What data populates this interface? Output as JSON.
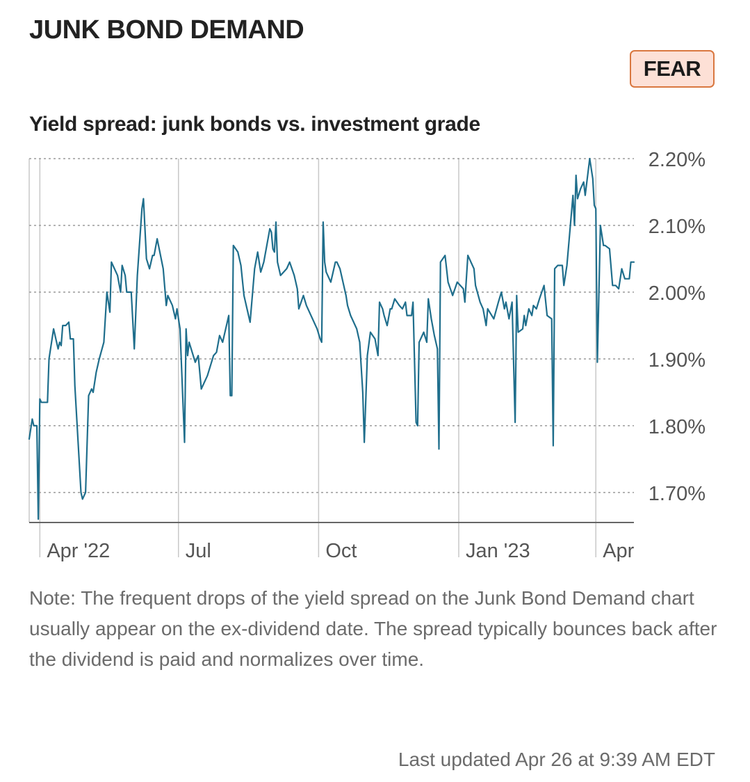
{
  "header": {
    "title": "JUNK BOND DEMAND",
    "badge_label": "FEAR"
  },
  "subtitle": "Yield spread: junk bonds vs. investment grade",
  "note": "Note: The frequent drops of the yield spread on the Junk Bond Demand chart usually appear on the ex-dividend date. The spread typically bounces back after the dividend is paid and normalizes over time.",
  "last_updated": "Last updated Apr 26 at 9:39 AM EDT",
  "colors": {
    "line": "#1f6e8c",
    "badge_bg": "#fde0d6",
    "badge_border": "#d9773f",
    "grid": "#9a9a9a",
    "axis": "#666666"
  },
  "chart_data": {
    "type": "line",
    "title": "Yield spread: junk bonds vs. investment grade",
    "x_axis": {
      "type": "date",
      "range": [
        "2022-03-25",
        "2023-04-26"
      ],
      "ticks": [
        {
          "date": "2022-04-01",
          "label": "Apr '22"
        },
        {
          "date": "2022-07-01",
          "label": "Jul"
        },
        {
          "date": "2022-10-01",
          "label": "Oct"
        },
        {
          "date": "2023-01-01",
          "label": "Jan '23"
        },
        {
          "date": "2023-04-01",
          "label": "Apr"
        }
      ]
    },
    "y_axis": {
      "unit": "%",
      "range": [
        1.655,
        2.2
      ],
      "position": "right",
      "ticks": [
        {
          "value": 1.7,
          "label": "1.70%"
        },
        {
          "value": 1.8,
          "label": "1.80%"
        },
        {
          "value": 1.9,
          "label": "1.90%"
        },
        {
          "value": 2.0,
          "label": "2.00%"
        },
        {
          "value": 2.1,
          "label": "2.10%"
        },
        {
          "value": 2.2,
          "label": "2.20%"
        }
      ]
    },
    "grid": "horizontal dotted, vertical at month ticks",
    "series": [
      {
        "values": [
          [
            "2022-03-25",
            1.78
          ],
          [
            "2022-03-27",
            1.81
          ],
          [
            "2022-03-28",
            1.8
          ],
          [
            "2022-03-30",
            1.8
          ],
          [
            "2022-03-31",
            1.66
          ],
          [
            "2022-04-01",
            1.84
          ],
          [
            "2022-04-02",
            1.835
          ],
          [
            "2022-04-04",
            1.835
          ],
          [
            "2022-04-06",
            1.835
          ],
          [
            "2022-04-07",
            1.9
          ],
          [
            "2022-04-10",
            1.945
          ],
          [
            "2022-04-13",
            1.915
          ],
          [
            "2022-04-14",
            1.925
          ],
          [
            "2022-04-15",
            1.92
          ],
          [
            "2022-04-16",
            1.95
          ],
          [
            "2022-04-18",
            1.95
          ],
          [
            "2022-04-20",
            1.955
          ],
          [
            "2022-04-21",
            1.93
          ],
          [
            "2022-04-23",
            1.93
          ],
          [
            "2022-04-24",
            1.86
          ],
          [
            "2022-04-28",
            1.7
          ],
          [
            "2022-04-29",
            1.69
          ],
          [
            "2022-05-01",
            1.7
          ],
          [
            "2022-05-03",
            1.845
          ],
          [
            "2022-05-05",
            1.855
          ],
          [
            "2022-05-06",
            1.85
          ],
          [
            "2022-05-08",
            1.88
          ],
          [
            "2022-05-10",
            1.9
          ],
          [
            "2022-05-13",
            1.925
          ],
          [
            "2022-05-15",
            2.0
          ],
          [
            "2022-05-17",
            1.97
          ],
          [
            "2022-05-18",
            2.045
          ],
          [
            "2022-05-22",
            2.025
          ],
          [
            "2022-05-24",
            2.0
          ],
          [
            "2022-05-25",
            2.04
          ],
          [
            "2022-05-27",
            2.025
          ],
          [
            "2022-05-28",
            2.0
          ],
          [
            "2022-05-31",
            2.0
          ],
          [
            "2022-06-02",
            1.915
          ],
          [
            "2022-06-04",
            2.025
          ],
          [
            "2022-06-07",
            2.125
          ],
          [
            "2022-06-08",
            2.14
          ],
          [
            "2022-06-10",
            2.05
          ],
          [
            "2022-06-12",
            2.035
          ],
          [
            "2022-06-14",
            2.055
          ],
          [
            "2022-06-15",
            2.055
          ],
          [
            "2022-06-17",
            2.08
          ],
          [
            "2022-06-21",
            2.035
          ],
          [
            "2022-06-23",
            1.98
          ],
          [
            "2022-06-24",
            1.995
          ],
          [
            "2022-06-27",
            1.98
          ],
          [
            "2022-06-29",
            1.96
          ],
          [
            "2022-06-30",
            1.975
          ],
          [
            "2022-07-02",
            1.945
          ],
          [
            "2022-07-05",
            1.775
          ],
          [
            "2022-07-06",
            1.945
          ],
          [
            "2022-07-07",
            1.905
          ],
          [
            "2022-07-08",
            1.925
          ],
          [
            "2022-07-12",
            1.895
          ],
          [
            "2022-07-14",
            1.905
          ],
          [
            "2022-07-16",
            1.855
          ],
          [
            "2022-07-20",
            1.875
          ],
          [
            "2022-07-24",
            1.905
          ],
          [
            "2022-07-26",
            1.91
          ],
          [
            "2022-07-28",
            1.935
          ],
          [
            "2022-07-30",
            1.925
          ],
          [
            "2022-08-03",
            1.965
          ],
          [
            "2022-08-04",
            1.845
          ],
          [
            "2022-08-05",
            1.845
          ],
          [
            "2022-08-06",
            2.07
          ],
          [
            "2022-08-09",
            2.06
          ],
          [
            "2022-08-11",
            2.04
          ],
          [
            "2022-08-13",
            1.995
          ],
          [
            "2022-08-17",
            1.955
          ],
          [
            "2022-08-20",
            2.035
          ],
          [
            "2022-08-22",
            2.06
          ],
          [
            "2022-08-24",
            2.03
          ],
          [
            "2022-08-26",
            2.045
          ],
          [
            "2022-08-30",
            2.095
          ],
          [
            "2022-08-31",
            2.09
          ],
          [
            "2022-09-01",
            2.065
          ],
          [
            "2022-09-02",
            2.06
          ],
          [
            "2022-09-03",
            2.105
          ],
          [
            "2022-09-04",
            2.045
          ],
          [
            "2022-09-06",
            2.025
          ],
          [
            "2022-09-08",
            2.03
          ],
          [
            "2022-09-10",
            2.035
          ],
          [
            "2022-09-12",
            2.045
          ],
          [
            "2022-09-15",
            2.025
          ],
          [
            "2022-09-17",
            2.005
          ],
          [
            "2022-09-18",
            1.975
          ],
          [
            "2022-09-21",
            1.995
          ],
          [
            "2022-09-23",
            1.98
          ],
          [
            "2022-09-30",
            1.945
          ],
          [
            "2022-10-02",
            1.93
          ],
          [
            "2022-10-03",
            1.925
          ],
          [
            "2022-10-04",
            2.105
          ],
          [
            "2022-10-05",
            2.045
          ],
          [
            "2022-10-06",
            2.03
          ],
          [
            "2022-10-09",
            2.015
          ],
          [
            "2022-10-12",
            2.045
          ],
          [
            "2022-10-13",
            2.045
          ],
          [
            "2022-10-15",
            2.035
          ],
          [
            "2022-10-19",
            1.995
          ],
          [
            "2022-10-20",
            1.98
          ],
          [
            "2022-10-22",
            1.965
          ],
          [
            "2022-10-24",
            1.955
          ],
          [
            "2022-10-26",
            1.945
          ],
          [
            "2022-10-28",
            1.925
          ],
          [
            "2022-10-30",
            1.85
          ],
          [
            "2022-10-31",
            1.775
          ],
          [
            "2022-11-02",
            1.905
          ],
          [
            "2022-11-04",
            1.94
          ],
          [
            "2022-11-07",
            1.93
          ],
          [
            "2022-11-09",
            1.905
          ],
          [
            "2022-11-10",
            1.985
          ],
          [
            "2022-11-12",
            1.975
          ],
          [
            "2022-11-13",
            1.965
          ],
          [
            "2022-11-15",
            1.95
          ],
          [
            "2022-11-17",
            1.975
          ],
          [
            "2022-11-18",
            1.975
          ],
          [
            "2022-11-20",
            1.99
          ],
          [
            "2022-11-23",
            1.98
          ],
          [
            "2022-11-25",
            1.975
          ],
          [
            "2022-11-27",
            1.985
          ],
          [
            "2022-11-28",
            1.965
          ],
          [
            "2022-12-01",
            1.965
          ],
          [
            "2022-12-02",
            1.985
          ],
          [
            "2022-12-04",
            1.805
          ],
          [
            "2022-12-05",
            1.8
          ],
          [
            "2022-12-06",
            1.925
          ],
          [
            "2022-12-09",
            1.94
          ],
          [
            "2022-12-11",
            1.925
          ],
          [
            "2022-12-12",
            1.99
          ],
          [
            "2022-12-14",
            1.96
          ],
          [
            "2022-12-16",
            1.935
          ],
          [
            "2022-12-18",
            1.915
          ],
          [
            "2022-12-19",
            1.765
          ],
          [
            "2022-12-20",
            2.045
          ],
          [
            "2022-12-23",
            2.055
          ],
          [
            "2022-12-25",
            2.015
          ],
          [
            "2022-12-28",
            1.995
          ],
          [
            "2022-12-31",
            2.015
          ],
          [
            "2023-01-04",
            2.005
          ],
          [
            "2023-01-05",
            1.985
          ],
          [
            "2023-01-07",
            2.055
          ],
          [
            "2023-01-11",
            2.035
          ],
          [
            "2023-01-12",
            2.01
          ],
          [
            "2023-01-15",
            1.985
          ],
          [
            "2023-01-17",
            1.975
          ],
          [
            "2023-01-19",
            1.95
          ],
          [
            "2023-01-20",
            1.975
          ],
          [
            "2023-01-24",
            1.96
          ],
          [
            "2023-01-27",
            1.985
          ],
          [
            "2023-01-29",
            2.0
          ],
          [
            "2023-01-31",
            1.975
          ],
          [
            "2023-02-01",
            1.985
          ],
          [
            "2023-02-03",
            1.96
          ],
          [
            "2023-02-05",
            1.985
          ],
          [
            "2023-02-07",
            1.805
          ],
          [
            "2023-02-08",
            1.995
          ],
          [
            "2023-02-09",
            1.94
          ],
          [
            "2023-02-12",
            1.945
          ],
          [
            "2023-02-13",
            1.965
          ],
          [
            "2023-02-14",
            1.95
          ],
          [
            "2023-02-16",
            1.975
          ],
          [
            "2023-02-18",
            1.965
          ],
          [
            "2023-02-19",
            1.98
          ],
          [
            "2023-02-21",
            1.975
          ],
          [
            "2023-02-23",
            1.99
          ],
          [
            "2023-02-26",
            2.01
          ],
          [
            "2023-02-28",
            1.965
          ],
          [
            "2023-03-03",
            1.96
          ],
          [
            "2023-03-04",
            1.77
          ],
          [
            "2023-03-05",
            2.035
          ],
          [
            "2023-03-07",
            2.04
          ],
          [
            "2023-03-10",
            2.04
          ],
          [
            "2023-03-11",
            2.01
          ],
          [
            "2023-03-13",
            2.04
          ],
          [
            "2023-03-17",
            2.145
          ],
          [
            "2023-03-18",
            2.1
          ],
          [
            "2023-03-19",
            2.175
          ],
          [
            "2023-03-20",
            2.14
          ],
          [
            "2023-03-22",
            2.155
          ],
          [
            "2023-03-24",
            2.165
          ],
          [
            "2023-03-25",
            2.145
          ],
          [
            "2023-03-28",
            2.2
          ],
          [
            "2023-03-30",
            2.17
          ],
          [
            "2023-03-31",
            2.13
          ],
          [
            "2023-04-01",
            2.125
          ],
          [
            "2023-04-02",
            1.895
          ],
          [
            "2023-04-04",
            2.1
          ],
          [
            "2023-04-06",
            2.07
          ],
          [
            "2023-04-07",
            2.07
          ],
          [
            "2023-04-10",
            2.065
          ],
          [
            "2023-04-12",
            2.01
          ],
          [
            "2023-04-14",
            2.01
          ],
          [
            "2023-04-16",
            2.005
          ],
          [
            "2023-04-18",
            2.035
          ],
          [
            "2023-04-20",
            2.02
          ],
          [
            "2023-04-23",
            2.02
          ],
          [
            "2023-04-24",
            2.045
          ],
          [
            "2023-04-26",
            2.045
          ]
        ]
      }
    ]
  }
}
